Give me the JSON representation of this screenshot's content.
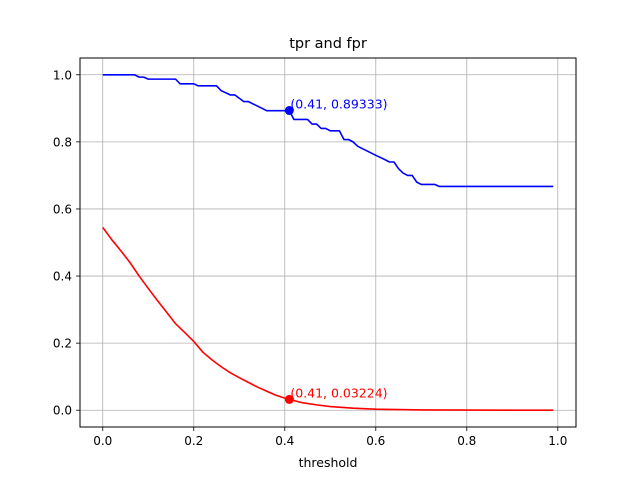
{
  "chart_data": {
    "type": "line",
    "title": "tpr and fpr",
    "xlabel": "threshold",
    "ylabel": "",
    "xlim": [
      -0.05,
      1.04
    ],
    "ylim": [
      -0.05,
      1.05
    ],
    "xticks": [
      0.0,
      0.2,
      0.4,
      0.6,
      0.8,
      1.0
    ],
    "xtick_labels": [
      "0.0",
      "0.2",
      "0.4",
      "0.6",
      "0.8",
      "1.0"
    ],
    "yticks": [
      0.0,
      0.2,
      0.4,
      0.6,
      0.8,
      1.0
    ],
    "ytick_labels": [
      "0.0",
      "0.2",
      "0.4",
      "0.6",
      "0.8",
      "1.0"
    ],
    "grid": true,
    "series": [
      {
        "color": "#0000ff",
        "x": [
          0.0,
          0.07,
          0.08,
          0.09,
          0.1,
          0.16,
          0.17,
          0.2,
          0.21,
          0.25,
          0.26,
          0.28,
          0.29,
          0.31,
          0.32,
          0.35,
          0.36,
          0.41,
          0.42,
          0.45,
          0.46,
          0.47,
          0.48,
          0.49,
          0.5,
          0.52,
          0.53,
          0.54,
          0.55,
          0.56,
          0.6,
          0.62,
          0.63,
          0.64,
          0.65,
          0.66,
          0.67,
          0.68,
          0.69,
          0.7,
          0.73,
          0.74,
          0.99
        ],
        "y": [
          1.0,
          1.0,
          0.993,
          0.993,
          0.987,
          0.987,
          0.973,
          0.973,
          0.967,
          0.967,
          0.953,
          0.94,
          0.94,
          0.92,
          0.92,
          0.9,
          0.893,
          0.893,
          0.867,
          0.867,
          0.853,
          0.853,
          0.84,
          0.84,
          0.833,
          0.833,
          0.807,
          0.807,
          0.8,
          0.787,
          0.76,
          0.747,
          0.74,
          0.74,
          0.72,
          0.707,
          0.7,
          0.7,
          0.68,
          0.673,
          0.673,
          0.667,
          0.667
        ],
        "marker": {
          "x": 0.41,
          "y": 0.89333,
          "label": "(0.41, 0.89333)"
        }
      },
      {
        "color": "#ff0000",
        "x": [
          0.0,
          0.02,
          0.04,
          0.06,
          0.08,
          0.1,
          0.12,
          0.14,
          0.16,
          0.18,
          0.2,
          0.22,
          0.24,
          0.26,
          0.28,
          0.3,
          0.32,
          0.34,
          0.36,
          0.38,
          0.4,
          0.41,
          0.44,
          0.47,
          0.5,
          0.55,
          0.6,
          0.65,
          0.7,
          0.8,
          0.9,
          0.99
        ],
        "y": [
          0.545,
          0.508,
          0.475,
          0.44,
          0.4,
          0.363,
          0.327,
          0.293,
          0.258,
          0.232,
          0.205,
          0.173,
          0.15,
          0.13,
          0.112,
          0.097,
          0.083,
          0.069,
          0.057,
          0.045,
          0.036,
          0.03224,
          0.022,
          0.016,
          0.011,
          0.006,
          0.003,
          0.002,
          0.001,
          0.0005,
          0.0002,
          0.0001
        ],
        "marker": {
          "x": 0.41,
          "y": 0.03224,
          "label": "(0.41, 0.03224)"
        }
      }
    ]
  }
}
